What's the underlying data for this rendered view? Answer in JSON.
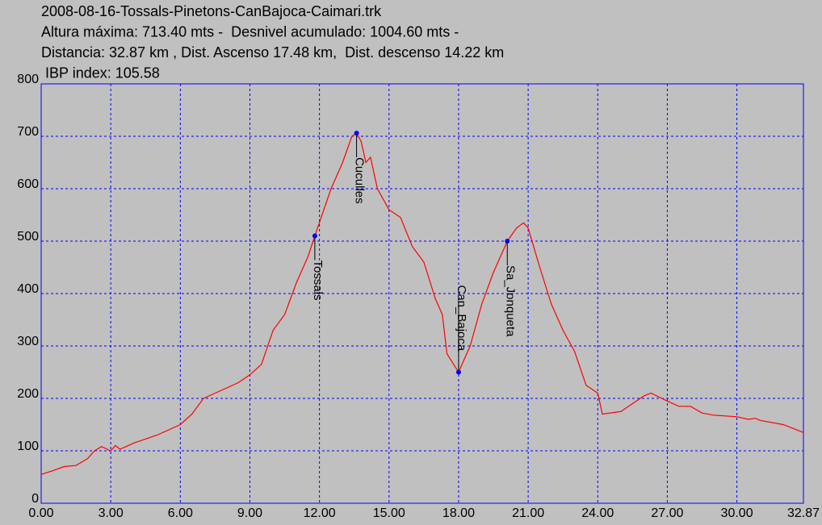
{
  "chart_data": {
    "type": "line",
    "title_lines": [
      "2008-08-16-Tossals-Pinetons-CanBajoca-Caimari.trk",
      "Altura máxima: 713.40 mts -  Desnivel acumulado: 1004.60 mts -",
      "Distancia: 32.87 km , Dist. Ascenso 17.48 km,  Dist. descenso 14.22 km",
      " IBP index: 105.58"
    ],
    "x": [
      0,
      0.5,
      1,
      1.5,
      2,
      2.3,
      2.6,
      3.0,
      3.2,
      3.4,
      4,
      5,
      6,
      6.5,
      7,
      7.5,
      8,
      8.5,
      9,
      9.5,
      10,
      10.5,
      11,
      11.5,
      11.8,
      12.5,
      13,
      13.4,
      13.6,
      13.8,
      14,
      14.2,
      14.5,
      15,
      15.5,
      16,
      16.5,
      17,
      17.3,
      17.5,
      18.0,
      18.5,
      19,
      19.5,
      20.1,
      20.5,
      20.8,
      21,
      21.5,
      22,
      22.5,
      23,
      23.5,
      24,
      24.2,
      25,
      25.5,
      26,
      26.3,
      27,
      27.5,
      28,
      28.5,
      29,
      30,
      30.5,
      30.8,
      31,
      32,
      32.87
    ],
    "series": [
      {
        "color": "#ff0000",
        "values": [
          55,
          62,
          70,
          72,
          85,
          100,
          108,
          100,
          110,
          103,
          115,
          130,
          150,
          170,
          200,
          210,
          220,
          230,
          245,
          265,
          330,
          360,
          420,
          470,
          510,
          600,
          650,
          700,
          706,
          690,
          650,
          660,
          600,
          560,
          545,
          490,
          460,
          390,
          360,
          285,
          250,
          300,
          380,
          440,
          500,
          525,
          535,
          525,
          450,
          380,
          330,
          290,
          225,
          210,
          170,
          175,
          190,
          205,
          210,
          195,
          185,
          185,
          172,
          168,
          165,
          160,
          162,
          158,
          150,
          135
        ]
      }
    ],
    "waypoints": [
      {
        "label": "Tossals",
        "x": 11.8,
        "y": 510,
        "label_position": "below"
      },
      {
        "label": "Cuculles",
        "x": 13.6,
        "y": 706,
        "label_position": "below"
      },
      {
        "label": "Can_Bajoca",
        "x": 18.0,
        "y": 250,
        "label_position": "above"
      },
      {
        "label": "Sa_Jonqueta",
        "x": 20.1,
        "y": 500,
        "label_position": "below"
      }
    ],
    "waypoint_color": "#0000ff",
    "xlim": [
      0,
      32.87
    ],
    "xticks": [
      {
        "value": 0,
        "label": "0.00"
      },
      {
        "value": 3,
        "label": "3.00"
      },
      {
        "value": 6,
        "label": "6.00"
      },
      {
        "value": 9,
        "label": "9.00"
      },
      {
        "value": 12,
        "label": "12.00"
      },
      {
        "value": 15,
        "label": "15.00"
      },
      {
        "value": 18,
        "label": "18.00"
      },
      {
        "value": 21,
        "label": "21.00"
      },
      {
        "value": 24,
        "label": "24.00"
      },
      {
        "value": 27,
        "label": "27.00"
      },
      {
        "value": 30,
        "label": "30.00"
      },
      {
        "value": 32.87,
        "label": "32.87"
      }
    ],
    "ylim": [
      0,
      800
    ],
    "yticks": [
      0,
      100,
      200,
      300,
      400,
      500,
      600,
      700,
      800
    ],
    "grid": true,
    "grid_color": "#0000ff",
    "frame_color": "#0000ff"
  }
}
